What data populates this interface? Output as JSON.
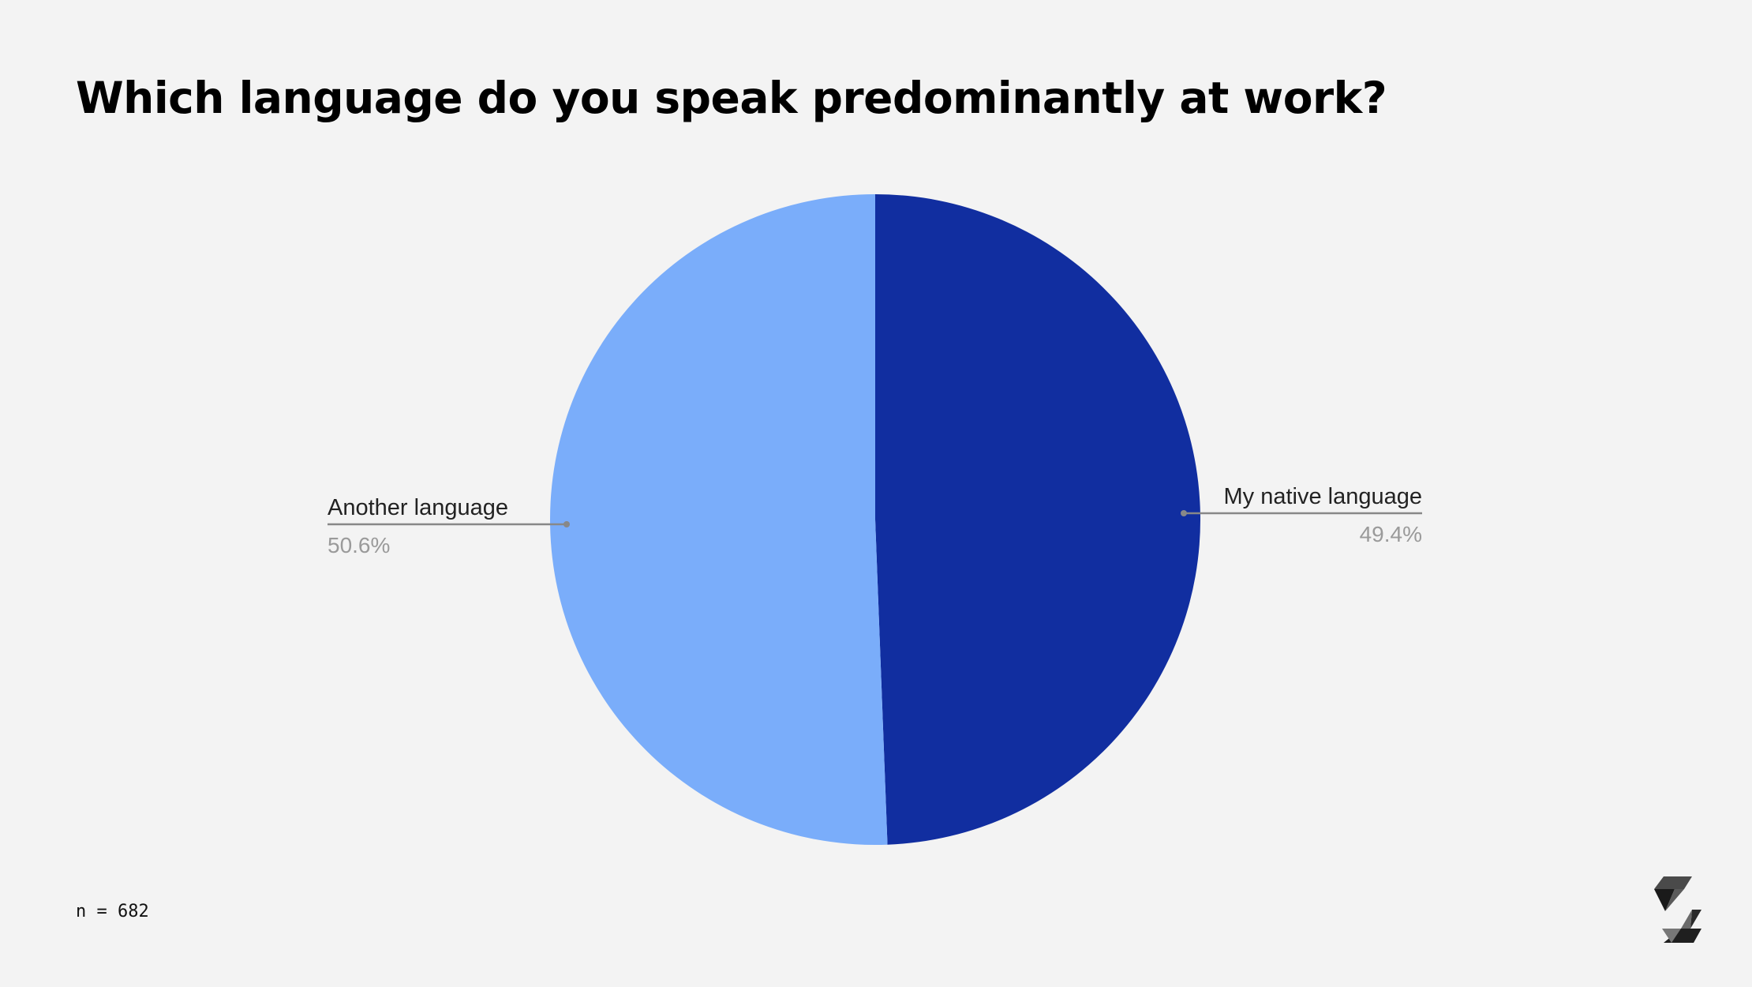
{
  "title": "Which language do you speak predominantly at work?",
  "footnote": "n = 682",
  "chart_data": {
    "type": "pie",
    "title": "Which language do you speak predominantly at work?",
    "slices": [
      {
        "label": "My native language",
        "value": 49.4,
        "display": "49.4%",
        "color": "#112ea0",
        "label_side": "right"
      },
      {
        "label": "Another language",
        "value": 50.6,
        "display": "50.6%",
        "color": "#7aadfa",
        "label_side": "left"
      }
    ],
    "start": "12 o'clock, clockwise",
    "legend": "none",
    "label_color": "#222222",
    "value_color": "#9a9a9a",
    "leader_color": "#888888"
  }
}
